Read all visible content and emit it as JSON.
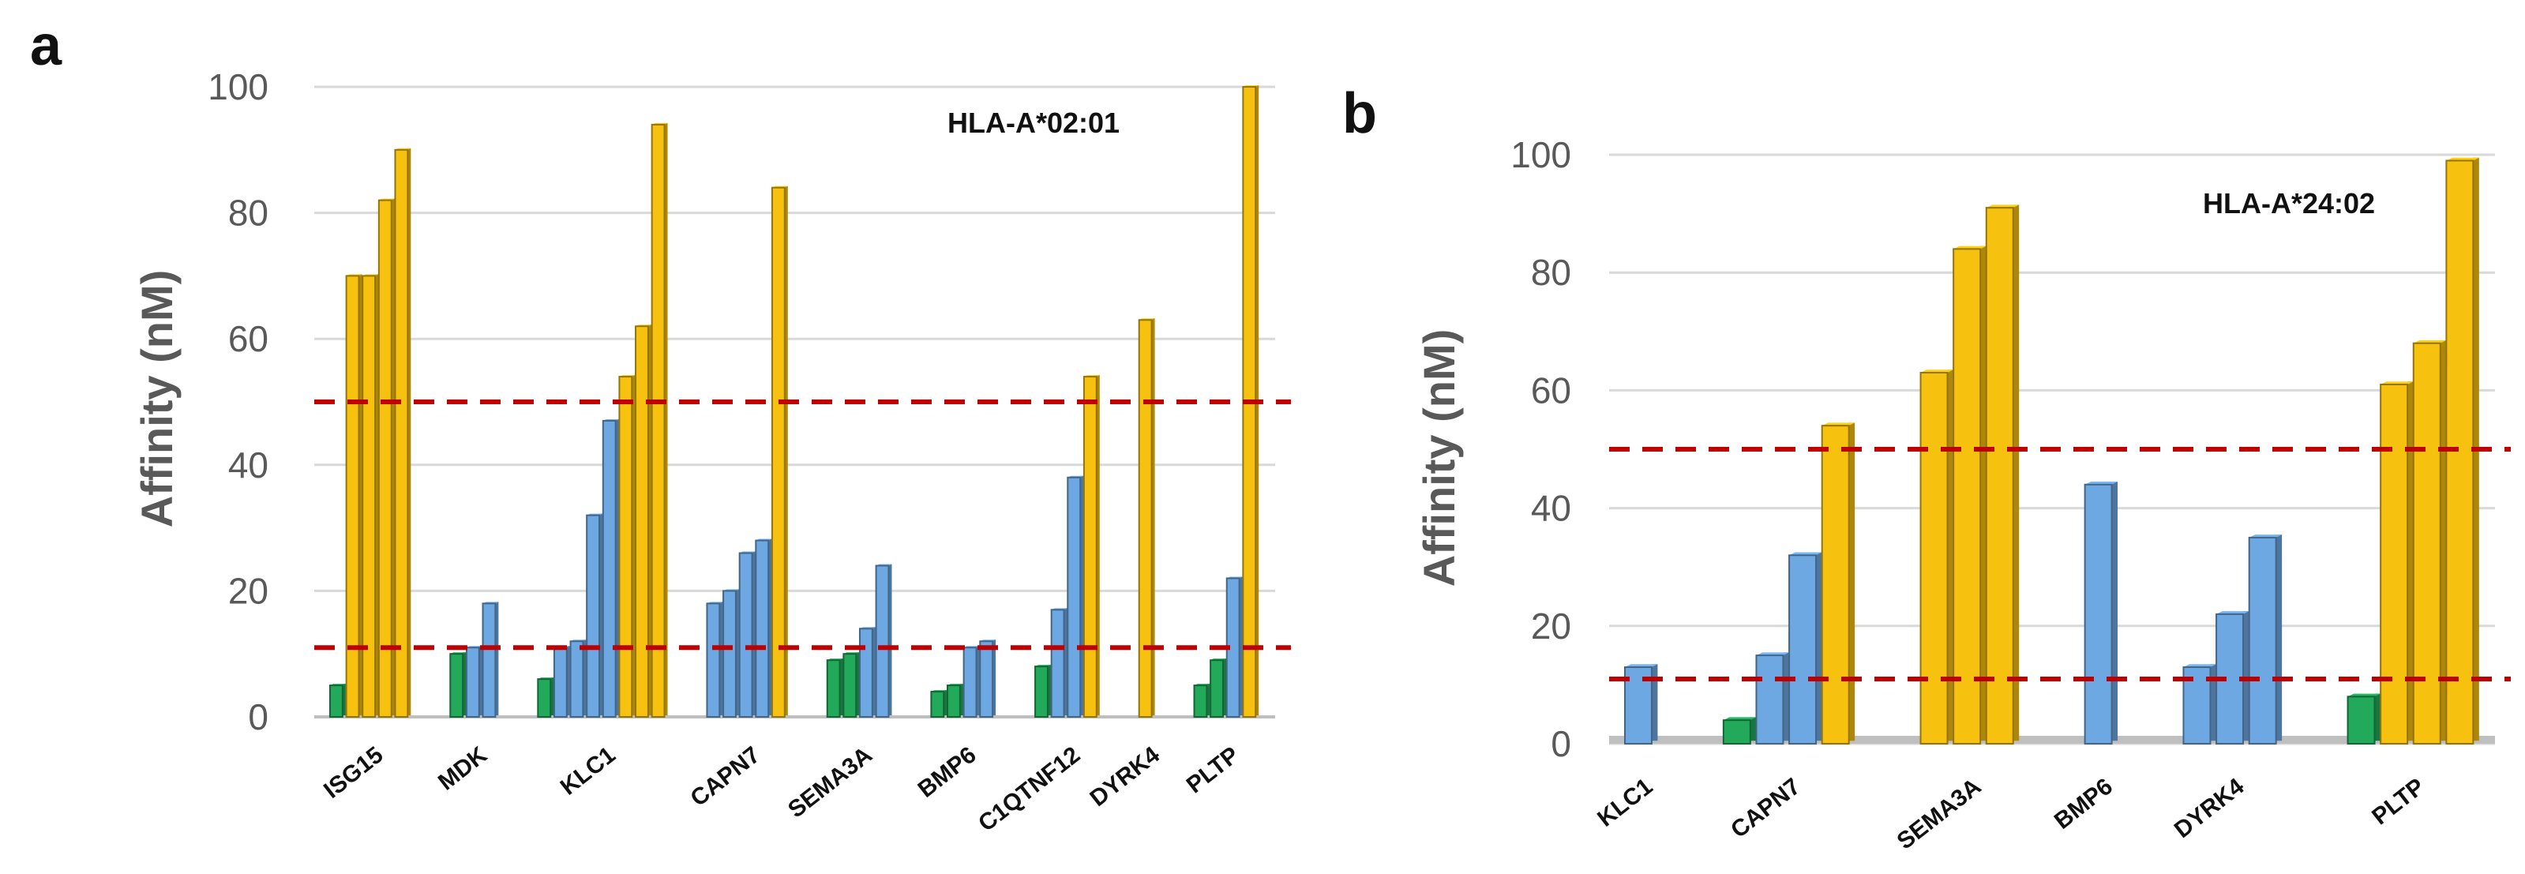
{
  "colors": {
    "green": "#22a95a",
    "blue": "#6ea8e2",
    "yellow": "#f7c10f",
    "threshold": "#c00000",
    "grid": "#d9d9d9"
  },
  "chart_data": [
    {
      "panel": "a",
      "type": "bar",
      "title": "",
      "annotation": "HLA-A*02:01",
      "ylabel": "Affinity (nM)",
      "xlabel": "",
      "ylim": [
        0,
        100
      ],
      "yticks": [
        0,
        20,
        40,
        60,
        80,
        100
      ],
      "thresholds": [
        50,
        11
      ],
      "categories": [
        {
          "name": "ISG15",
          "bars": [
            {
              "v": 5,
              "c": "green"
            },
            {
              "v": 70,
              "c": "yellow"
            },
            {
              "v": 70,
              "c": "yellow"
            },
            {
              "v": 82,
              "c": "yellow"
            },
            {
              "v": 90,
              "c": "yellow"
            }
          ]
        },
        {
          "name": "MDK",
          "bars": [
            {
              "v": 10,
              "c": "green"
            },
            {
              "v": 11,
              "c": "blue"
            },
            {
              "v": 18,
              "c": "blue"
            }
          ]
        },
        {
          "name": "KLC1",
          "bars": [
            {
              "v": 6,
              "c": "green"
            },
            {
              "v": 11,
              "c": "blue"
            },
            {
              "v": 12,
              "c": "blue"
            },
            {
              "v": 32,
              "c": "blue"
            },
            {
              "v": 47,
              "c": "blue"
            },
            {
              "v": 54,
              "c": "yellow"
            },
            {
              "v": 62,
              "c": "yellow"
            },
            {
              "v": 94,
              "c": "yellow"
            }
          ]
        },
        {
          "name": "CAPN7",
          "bars": [
            {
              "v": 18,
              "c": "blue"
            },
            {
              "v": 20,
              "c": "blue"
            },
            {
              "v": 26,
              "c": "blue"
            },
            {
              "v": 28,
              "c": "blue"
            },
            {
              "v": 84,
              "c": "yellow"
            }
          ]
        },
        {
          "name": "SEMA3A",
          "bars": [
            {
              "v": 9,
              "c": "green"
            },
            {
              "v": 10,
              "c": "green"
            },
            {
              "v": 14,
              "c": "blue"
            },
            {
              "v": 24,
              "c": "blue"
            }
          ]
        },
        {
          "name": "BMP6",
          "bars": [
            {
              "v": 4,
              "c": "green"
            },
            {
              "v": 5,
              "c": "green"
            },
            {
              "v": 11,
              "c": "blue"
            },
            {
              "v": 12,
              "c": "blue"
            }
          ]
        },
        {
          "name": "C1QTNF12",
          "bars": [
            {
              "v": 8,
              "c": "green"
            },
            {
              "v": 17,
              "c": "blue"
            },
            {
              "v": 38,
              "c": "blue"
            },
            {
              "v": 54,
              "c": "yellow"
            }
          ]
        },
        {
          "name": "DYRK4",
          "bars": [
            {
              "v": 63,
              "c": "yellow"
            }
          ]
        },
        {
          "name": "PLTP",
          "bars": [
            {
              "v": 5,
              "c": "green"
            },
            {
              "v": 9,
              "c": "green"
            },
            {
              "v": 22,
              "c": "blue"
            },
            {
              "v": 100,
              "c": "yellow"
            }
          ]
        }
      ]
    },
    {
      "panel": "b",
      "type": "bar",
      "title": "",
      "annotation": "HLA-A*24:02",
      "ylabel": "Affinity (nM)",
      "xlabel": "",
      "ylim": [
        0,
        100
      ],
      "yticks": [
        0,
        20,
        40,
        60,
        80,
        100
      ],
      "thresholds": [
        50,
        11
      ],
      "categories": [
        {
          "name": "KLC1",
          "bars": [
            {
              "v": 13,
              "c": "blue"
            }
          ]
        },
        {
          "name": "CAPN7",
          "bars": [
            {
              "v": 4,
              "c": "green"
            },
            {
              "v": 15,
              "c": "blue"
            },
            {
              "v": 32,
              "c": "blue"
            },
            {
              "v": 54,
              "c": "yellow"
            }
          ]
        },
        {
          "name": "SEMA3A",
          "bars": [
            {
              "v": 63,
              "c": "yellow"
            },
            {
              "v": 84,
              "c": "yellow"
            },
            {
              "v": 91,
              "c": "yellow"
            }
          ]
        },
        {
          "name": "BMP6",
          "bars": [
            {
              "v": 44,
              "c": "blue"
            }
          ]
        },
        {
          "name": "DYRK4",
          "bars": [
            {
              "v": 13,
              "c": "blue"
            },
            {
              "v": 22,
              "c": "blue"
            },
            {
              "v": 35,
              "c": "blue"
            }
          ]
        },
        {
          "name": "PLTP",
          "bars": [
            {
              "v": 8,
              "c": "green"
            },
            {
              "v": 61,
              "c": "yellow"
            },
            {
              "v": 68,
              "c": "yellow"
            },
            {
              "v": 99,
              "c": "yellow"
            }
          ]
        }
      ]
    }
  ]
}
